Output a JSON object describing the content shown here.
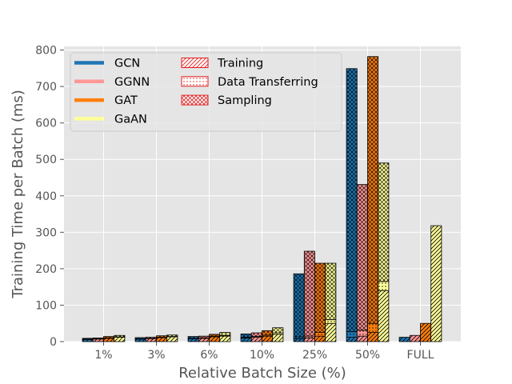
{
  "chart_data": {
    "type": "bar",
    "categories": [
      "1%",
      "3%",
      "6%",
      "10%",
      "25%",
      "50%",
      "FULL"
    ],
    "xlabel": "Relative Batch Size (%)",
    "ylabel": "Training Time per Batch (ms)",
    "ylim": [
      0,
      810
    ],
    "yticks": [
      0,
      100,
      200,
      300,
      400,
      500,
      600,
      700,
      800
    ],
    "grid": true,
    "legend_position": "top-left",
    "stacked": true,
    "series": [
      {
        "name": "GCN",
        "color": "#1f77b4",
        "training": [
          6,
          7,
          8,
          10,
          8,
          12,
          12
        ],
        "data_transferring": [
          1,
          1,
          1,
          2,
          5,
          15,
          0
        ],
        "sampling": [
          2,
          3,
          5,
          9,
          173,
          722,
          0
        ]
      },
      {
        "name": "GGNN",
        "color": "#ff9896",
        "training": [
          7,
          8,
          9,
          12,
          10,
          15,
          17
        ],
        "data_transferring": [
          1,
          1,
          1,
          2,
          5,
          16,
          0
        ],
        "sampling": [
          2,
          3,
          5,
          10,
          233,
          400,
          0
        ]
      },
      {
        "name": "GAT",
        "color": "#ff7f0e",
        "training": [
          9,
          11,
          13,
          15,
          15,
          25,
          50
        ],
        "data_transferring": [
          1,
          1,
          2,
          3,
          10,
          25,
          0
        ],
        "sampling": [
          4,
          4,
          5,
          12,
          190,
          732,
          0
        ]
      },
      {
        "name": "GaAN",
        "color": "#ffff99",
        "training": [
          12,
          13,
          15,
          20,
          50,
          140,
          318
        ],
        "data_transferring": [
          1,
          1,
          2,
          4,
          10,
          25,
          0
        ],
        "sampling": [
          4,
          4,
          8,
          14,
          155,
          325,
          0
        ]
      }
    ],
    "phases": [
      "Training",
      "Data Transferring",
      "Sampling"
    ]
  }
}
